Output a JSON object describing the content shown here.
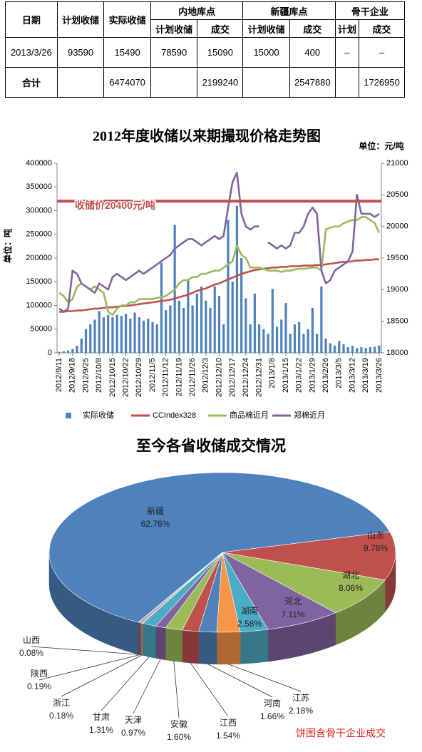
{
  "table": {
    "header": [
      [
        "日期",
        "计划收储",
        "实际收储",
        "内地库点",
        "新疆库点",
        "骨干企业"
      ],
      [
        "计划收储",
        "成交",
        "计划收储",
        "成交",
        "计划",
        "成交"
      ]
    ],
    "rows": [
      [
        "2013/3/26",
        93590,
        15490,
        78590,
        15090,
        15000,
        400,
        "–",
        "–"
      ],
      [
        "合计",
        null,
        6474070,
        null,
        2199240,
        null,
        2547880,
        null,
        1726950
      ]
    ]
  },
  "chart_data": [
    {
      "type": "bar",
      "title": "2012年度收储以来期撮现价格走势图",
      "unit_label": "单位：元/吨",
      "ylabel": "单位：吨",
      "reference_line": {
        "value": 20400,
        "label": "收储价20400元/吨",
        "axis": "y2",
        "color": "#c0504d"
      },
      "ylim": [
        0,
        400000
      ],
      "yticks": [
        0,
        50000,
        100000,
        150000,
        200000,
        250000,
        300000,
        350000,
        400000
      ],
      "y2lim": [
        18000,
        21000
      ],
      "y2ticks": [
        18000,
        18500,
        19000,
        19500,
        20000,
        20500,
        21000
      ],
      "grid": false,
      "legend": "bottom",
      "categories": [
        "2012/9/11",
        null,
        null,
        "2012/9/18",
        null,
        null,
        "2012/9/25",
        null,
        null,
        "2012/10/8",
        null,
        null,
        "2012/10/15",
        null,
        null,
        "2012/10/22",
        null,
        null,
        "2012/10/29",
        null,
        null,
        "2012/11/5",
        null,
        null,
        "2012/11/12",
        null,
        null,
        "2012/11/19",
        null,
        null,
        "2012/11/26",
        null,
        null,
        "2012/12/3",
        null,
        null,
        "2012/12/10",
        null,
        null,
        "2012/12/17",
        null,
        null,
        "2012/12/24",
        null,
        null,
        "2012/12/31",
        null,
        null,
        "2013/1/8",
        null,
        null,
        "2013/1/15",
        null,
        null,
        "2013/1/22",
        null,
        null,
        "2013/1/29",
        null,
        null,
        "2013/2/26",
        null,
        null,
        "2013/3/5",
        null,
        null,
        "2013/3/12",
        null,
        null,
        "2013/3/19",
        null,
        null,
        "2013/3/26"
      ],
      "series": [
        {
          "name": "实际收储",
          "type": "bar",
          "axis": "y",
          "color": "#4f81bd",
          "values": [
            2000,
            3000,
            5000,
            8000,
            15000,
            30000,
            50000,
            60000,
            70000,
            88000,
            75000,
            80000,
            75000,
            80000,
            78000,
            82000,
            72000,
            85000,
            75000,
            68000,
            72000,
            65000,
            60000,
            190000,
            90000,
            100000,
            270000,
            110000,
            95000,
            155000,
            100000,
            125000,
            140000,
            110000,
            95000,
            140000,
            120000,
            60000,
            280000,
            150000,
            310000,
            200000,
            115000,
            60000,
            125000,
            60000,
            50000,
            40000,
            135000,
            55000,
            70000,
            105000,
            40000,
            60000,
            65000,
            40000,
            50000,
            95000,
            40000,
            140000,
            30000,
            20000,
            15000,
            25000,
            18000,
            12000,
            15000,
            10000,
            12000,
            10000,
            12000,
            13000,
            15490
          ]
        },
        {
          "name": "CCIndex328",
          "type": "line",
          "axis": "y2",
          "color": "#c0504d",
          "values": [
            18650,
            18650,
            18660,
            18660,
            18670,
            18670,
            18680,
            18690,
            18700,
            18700,
            18710,
            18720,
            18720,
            18730,
            18740,
            18740,
            18750,
            18760,
            18770,
            18780,
            18790,
            18800,
            18810,
            18820,
            18830,
            18840,
            18860,
            18880,
            18900,
            18920,
            18950,
            18980,
            19000,
            19020,
            19050,
            19080,
            19100,
            19130,
            19160,
            19190,
            19220,
            19250,
            19270,
            19290,
            19310,
            19320,
            19330,
            19340,
            19350,
            19350,
            19360,
            19360,
            19370,
            19370,
            19370,
            19380,
            19380,
            19380,
            19390,
            19390,
            19400,
            19410,
            19420,
            19430,
            19440,
            19440,
            19450,
            19460,
            19460,
            19470,
            19470,
            19480,
            19480
          ]
        },
        {
          "name": "商品棉近月",
          "type": "line",
          "axis": "y2",
          "color": "#9bbb59",
          "values": [
            18950,
            18900,
            18800,
            18850,
            19050,
            19100,
            19050,
            19000,
            19050,
            19000,
            18950,
            18650,
            18600,
            18700,
            18750,
            18750,
            18800,
            18800,
            18850,
            18850,
            18850,
            18850,
            18870,
            18880,
            18900,
            18950,
            19000,
            19100,
            19150,
            19150,
            19200,
            19200,
            19250,
            19250,
            19280,
            19300,
            19300,
            19350,
            19400,
            19450,
            19700,
            19550,
            19500,
            19350,
            19350,
            19350,
            19330,
            19300,
            19300,
            19300,
            19280,
            19300,
            19300,
            19320,
            19330,
            19330,
            19340,
            19350,
            19350,
            19300,
            19950,
            19980,
            20000,
            20000,
            20050,
            20080,
            20100,
            20100,
            20150,
            20150,
            20100,
            20050,
            19900
          ]
        },
        {
          "name": "郑棉近月",
          "type": "line",
          "axis": "y2",
          "color": "#8064a2",
          "values": [
            18700,
            18650,
            18700,
            19300,
            19250,
            19100,
            19050,
            19000,
            18950,
            19100,
            19050,
            19000,
            19200,
            19250,
            19200,
            19150,
            19200,
            19250,
            19300,
            19250,
            19300,
            19350,
            19400,
            19450,
            19500,
            19550,
            19650,
            19700,
            19750,
            19800,
            19800,
            19750,
            19700,
            19750,
            19800,
            19850,
            19800,
            19850,
            20300,
            20700,
            20850,
            20200,
            20000,
            19950,
            20000,
            20000,
            null,
            19750,
            19700,
            19650,
            19700,
            19650,
            19700,
            19900,
            19900,
            20000,
            20200,
            20300,
            20200,
            19300,
            19100,
            19150,
            19300,
            19350,
            19400,
            19450,
            19600,
            20500,
            20200,
            20200,
            20200,
            20150,
            20200
          ]
        }
      ]
    },
    {
      "type": "pie",
      "title": "至今各省收储成交情况",
      "annotation": "饼图含骨干企业成交",
      "categories": [
        "新疆",
        "山东",
        "湖北",
        "河北",
        "湖南",
        "江苏",
        "河南",
        "江西",
        "安徽",
        "天津",
        "甘肃",
        "浙江",
        "陕西",
        "山西"
      ],
      "values": [
        62.76,
        9.78,
        8.06,
        7.11,
        2.58,
        2.18,
        1.66,
        1.54,
        1.6,
        0.97,
        1.31,
        0.18,
        0.19,
        0.08
      ],
      "value_labels": [
        "62.76%",
        "9.78%",
        "8.06%",
        "7.11%",
        "2.58%",
        "2.18%",
        "1.66%",
        "1.54%",
        "1.60%",
        "0.97%",
        "1.31%",
        "0.18%",
        "0.19%",
        "0.08%"
      ],
      "colors": [
        "#4f81bd",
        "#c0504d",
        "#9bbb59",
        "#8064a2",
        "#4bacc6",
        "#f79646",
        "#4f81bd",
        "#c0504d",
        "#9bbb59",
        "#8064a2",
        "#4bacc6",
        "#f79646",
        "#4f81bd",
        "#c0504d"
      ]
    }
  ]
}
